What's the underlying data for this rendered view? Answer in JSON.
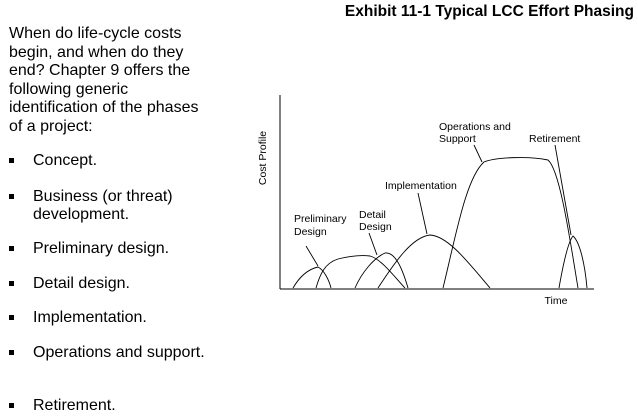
{
  "exhibit": {
    "title": "Exhibit 11-1 Typical LCC Effort Phasing"
  },
  "intro": {
    "text": "When do life-cycle costs begin, and when do they end?  Chapter 9 offers the following generic identification of the phases of a project:"
  },
  "bullets": [
    "Concept.",
    "Business (or threat) development.",
    "Preliminary design.",
    "Detail design.",
    "Implementation.",
    "Operations and support.",
    "Retirement."
  ],
  "diagram": {
    "y_axis_label": "Cost Profile",
    "x_axis_label": "Time",
    "phase_labels": {
      "preliminary": [
        "Preliminary",
        "Design"
      ],
      "detail": [
        "Detail",
        "Design"
      ],
      "implementation": [
        "Implementation"
      ],
      "operations": [
        "Operations and",
        "Support"
      ],
      "retirement": [
        "Retirement"
      ]
    }
  }
}
